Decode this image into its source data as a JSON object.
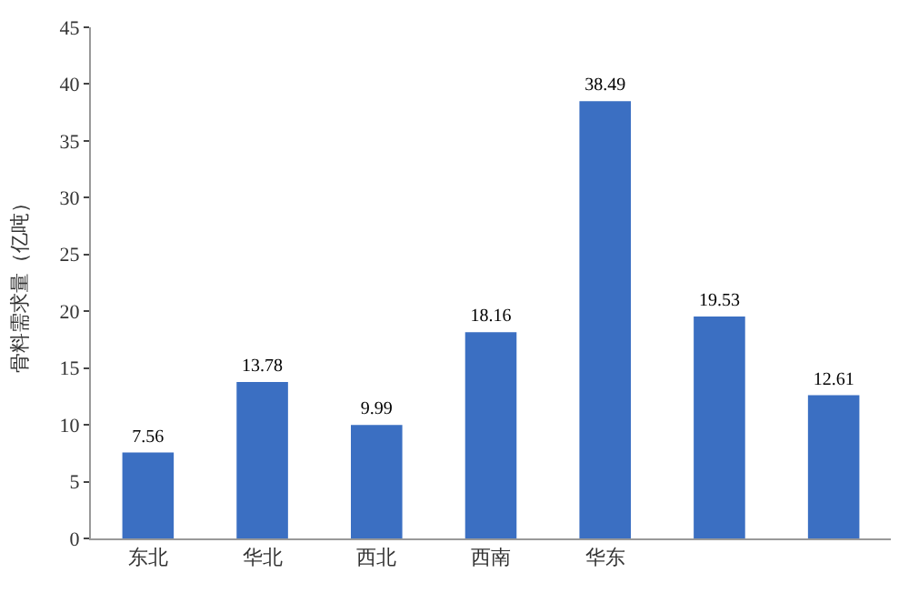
{
  "chart_data": {
    "type": "bar",
    "ylabel": "骨料需求量（亿吨）",
    "categories": [
      "东北",
      "华北",
      "西北",
      "西南",
      "华东",
      null,
      null
    ],
    "values": [
      7.56,
      13.78,
      9.99,
      18.16,
      38.49,
      19.53,
      12.61
    ],
    "color": "#3b6fc2",
    "ylim": [
      0,
      45
    ],
    "yticks": [
      0,
      5,
      10,
      15,
      20,
      25,
      30,
      35,
      40,
      45
    ],
    "data_labels": true
  }
}
